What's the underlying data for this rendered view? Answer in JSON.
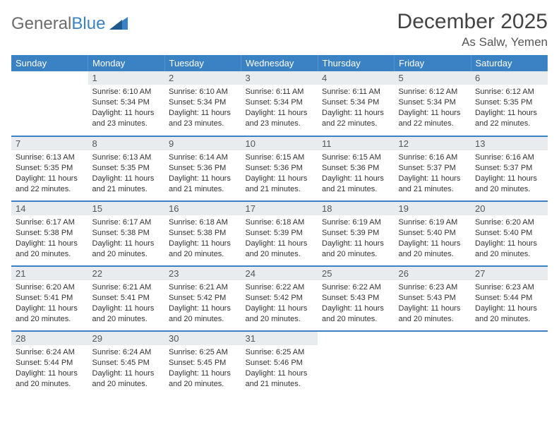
{
  "logo": {
    "text1": "General",
    "text2": "Blue"
  },
  "title": "December 2025",
  "location": "As Salw, Yemen",
  "colors": {
    "header_bg": "#3b82c4",
    "header_fg": "#ffffff",
    "daynum_bg": "#e9ecef",
    "border": "#3b82c4",
    "title_color": "#444444",
    "text_color": "#333333"
  },
  "weekdays": [
    "Sunday",
    "Monday",
    "Tuesday",
    "Wednesday",
    "Thursday",
    "Friday",
    "Saturday"
  ],
  "days": {
    "1": {
      "sunrise": "6:10 AM",
      "sunset": "5:34 PM",
      "daylight": "11 hours and 23 minutes."
    },
    "2": {
      "sunrise": "6:10 AM",
      "sunset": "5:34 PM",
      "daylight": "11 hours and 23 minutes."
    },
    "3": {
      "sunrise": "6:11 AM",
      "sunset": "5:34 PM",
      "daylight": "11 hours and 23 minutes."
    },
    "4": {
      "sunrise": "6:11 AM",
      "sunset": "5:34 PM",
      "daylight": "11 hours and 22 minutes."
    },
    "5": {
      "sunrise": "6:12 AM",
      "sunset": "5:34 PM",
      "daylight": "11 hours and 22 minutes."
    },
    "6": {
      "sunrise": "6:12 AM",
      "sunset": "5:35 PM",
      "daylight": "11 hours and 22 minutes."
    },
    "7": {
      "sunrise": "6:13 AM",
      "sunset": "5:35 PM",
      "daylight": "11 hours and 22 minutes."
    },
    "8": {
      "sunrise": "6:13 AM",
      "sunset": "5:35 PM",
      "daylight": "11 hours and 21 minutes."
    },
    "9": {
      "sunrise": "6:14 AM",
      "sunset": "5:36 PM",
      "daylight": "11 hours and 21 minutes."
    },
    "10": {
      "sunrise": "6:15 AM",
      "sunset": "5:36 PM",
      "daylight": "11 hours and 21 minutes."
    },
    "11": {
      "sunrise": "6:15 AM",
      "sunset": "5:36 PM",
      "daylight": "11 hours and 21 minutes."
    },
    "12": {
      "sunrise": "6:16 AM",
      "sunset": "5:37 PM",
      "daylight": "11 hours and 21 minutes."
    },
    "13": {
      "sunrise": "6:16 AM",
      "sunset": "5:37 PM",
      "daylight": "11 hours and 20 minutes."
    },
    "14": {
      "sunrise": "6:17 AM",
      "sunset": "5:38 PM",
      "daylight": "11 hours and 20 minutes."
    },
    "15": {
      "sunrise": "6:17 AM",
      "sunset": "5:38 PM",
      "daylight": "11 hours and 20 minutes."
    },
    "16": {
      "sunrise": "6:18 AM",
      "sunset": "5:38 PM",
      "daylight": "11 hours and 20 minutes."
    },
    "17": {
      "sunrise": "6:18 AM",
      "sunset": "5:39 PM",
      "daylight": "11 hours and 20 minutes."
    },
    "18": {
      "sunrise": "6:19 AM",
      "sunset": "5:39 PM",
      "daylight": "11 hours and 20 minutes."
    },
    "19": {
      "sunrise": "6:19 AM",
      "sunset": "5:40 PM",
      "daylight": "11 hours and 20 minutes."
    },
    "20": {
      "sunrise": "6:20 AM",
      "sunset": "5:40 PM",
      "daylight": "11 hours and 20 minutes."
    },
    "21": {
      "sunrise": "6:20 AM",
      "sunset": "5:41 PM",
      "daylight": "11 hours and 20 minutes."
    },
    "22": {
      "sunrise": "6:21 AM",
      "sunset": "5:41 PM",
      "daylight": "11 hours and 20 minutes."
    },
    "23": {
      "sunrise": "6:21 AM",
      "sunset": "5:42 PM",
      "daylight": "11 hours and 20 minutes."
    },
    "24": {
      "sunrise": "6:22 AM",
      "sunset": "5:42 PM",
      "daylight": "11 hours and 20 minutes."
    },
    "25": {
      "sunrise": "6:22 AM",
      "sunset": "5:43 PM",
      "daylight": "11 hours and 20 minutes."
    },
    "26": {
      "sunrise": "6:23 AM",
      "sunset": "5:43 PM",
      "daylight": "11 hours and 20 minutes."
    },
    "27": {
      "sunrise": "6:23 AM",
      "sunset": "5:44 PM",
      "daylight": "11 hours and 20 minutes."
    },
    "28": {
      "sunrise": "6:24 AM",
      "sunset": "5:44 PM",
      "daylight": "11 hours and 20 minutes."
    },
    "29": {
      "sunrise": "6:24 AM",
      "sunset": "5:45 PM",
      "daylight": "11 hours and 20 minutes."
    },
    "30": {
      "sunrise": "6:25 AM",
      "sunset": "5:45 PM",
      "daylight": "11 hours and 20 minutes."
    },
    "31": {
      "sunrise": "6:25 AM",
      "sunset": "5:46 PM",
      "daylight": "11 hours and 21 minutes."
    }
  },
  "labels": {
    "sunrise": "Sunrise:",
    "sunset": "Sunset:",
    "daylight": "Daylight:"
  },
  "layout": {
    "first_weekday_offset": 1,
    "rows": 5,
    "cols": 7,
    "total_days": 31
  }
}
